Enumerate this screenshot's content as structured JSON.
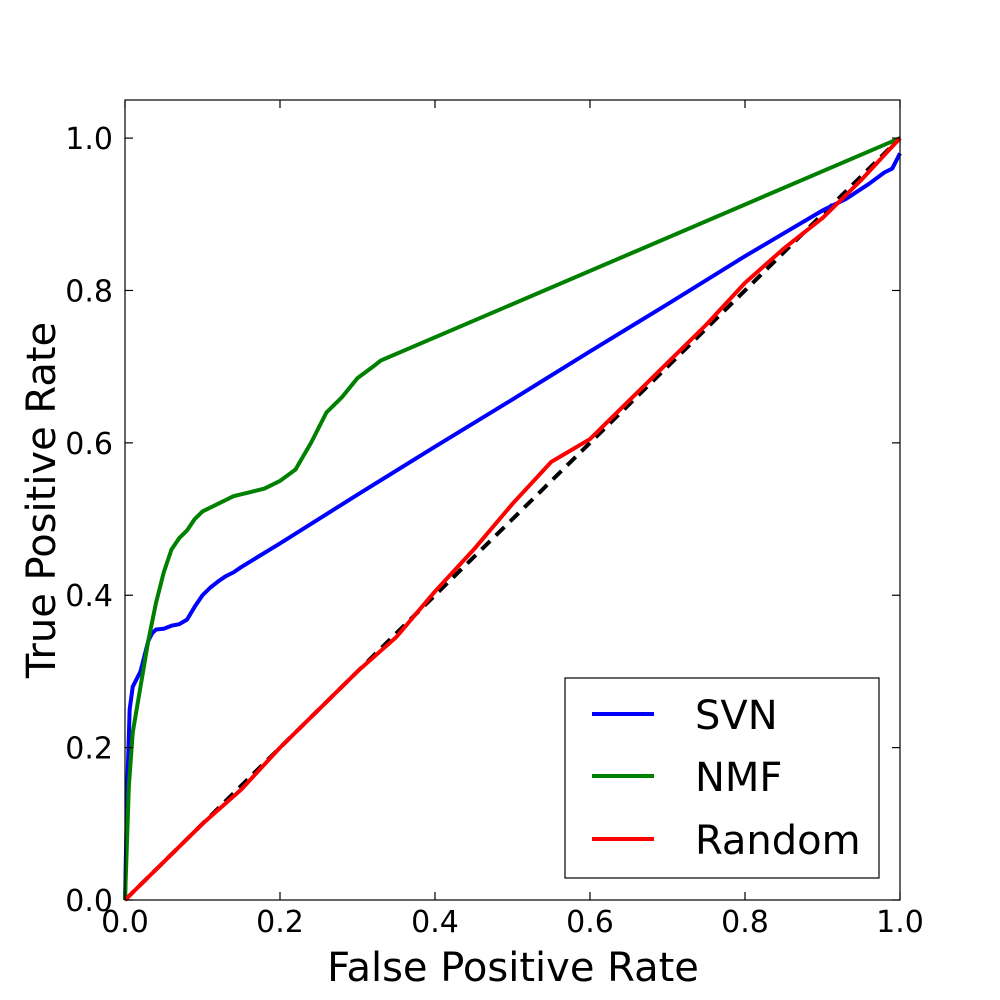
{
  "chart_data": {
    "type": "line",
    "title": "",
    "xlabel": "False Positive Rate",
    "ylabel": "True Positive Rate",
    "xlim": [
      0.0,
      1.0
    ],
    "ylim": [
      0.0,
      1.05
    ],
    "xticks": [
      "0.0",
      "0.2",
      "0.4",
      "0.6",
      "0.8",
      "1.0"
    ],
    "yticks": [
      "0.0",
      "0.2",
      "0.4",
      "0.6",
      "0.8",
      "1.0"
    ],
    "grid": false,
    "legend": {
      "position": "bottom-right"
    },
    "series": [
      {
        "name": "SVN",
        "color": "#0000ff",
        "x": [
          0.0,
          0.003,
          0.006,
          0.01,
          0.015,
          0.02,
          0.025,
          0.03,
          0.035,
          0.04,
          0.05,
          0.06,
          0.07,
          0.08,
          0.09,
          0.1,
          0.11,
          0.12,
          0.13,
          0.14,
          0.15,
          0.2,
          0.3,
          0.4,
          0.5,
          0.6,
          0.7,
          0.8,
          0.85,
          0.9,
          0.93,
          0.96,
          0.98,
          0.99,
          1.0
        ],
        "y": [
          0.0,
          0.15,
          0.25,
          0.28,
          0.29,
          0.3,
          0.32,
          0.34,
          0.35,
          0.355,
          0.356,
          0.36,
          0.362,
          0.368,
          0.385,
          0.4,
          0.41,
          0.418,
          0.425,
          0.43,
          0.437,
          0.468,
          0.532,
          0.595,
          0.657,
          0.72,
          0.782,
          0.845,
          0.875,
          0.905,
          0.92,
          0.94,
          0.955,
          0.96,
          0.98
        ]
      },
      {
        "name": "NMF",
        "color": "#008000",
        "x": [
          0.0,
          0.005,
          0.01,
          0.02,
          0.03,
          0.04,
          0.05,
          0.06,
          0.07,
          0.08,
          0.09,
          0.1,
          0.12,
          0.14,
          0.16,
          0.18,
          0.2,
          0.22,
          0.24,
          0.26,
          0.28,
          0.3,
          0.32,
          0.33,
          1.0
        ],
        "y": [
          0.0,
          0.15,
          0.22,
          0.28,
          0.34,
          0.39,
          0.43,
          0.46,
          0.475,
          0.485,
          0.5,
          0.51,
          0.52,
          0.53,
          0.535,
          0.54,
          0.55,
          0.565,
          0.6,
          0.64,
          0.66,
          0.685,
          0.7,
          0.708,
          1.0
        ]
      },
      {
        "name": "Random",
        "color": "#ff0000",
        "x": [
          0.0,
          0.05,
          0.1,
          0.15,
          0.2,
          0.25,
          0.3,
          0.35,
          0.4,
          0.45,
          0.5,
          0.55,
          0.6,
          0.65,
          0.7,
          0.75,
          0.8,
          0.85,
          0.9,
          0.95,
          1.0
        ],
        "y": [
          0.0,
          0.05,
          0.1,
          0.145,
          0.2,
          0.25,
          0.3,
          0.345,
          0.405,
          0.46,
          0.52,
          0.575,
          0.605,
          0.655,
          0.705,
          0.755,
          0.81,
          0.855,
          0.895,
          0.945,
          1.0
        ]
      },
      {
        "color": "#000000",
        "dashed": true,
        "x": [
          0.0,
          1.0
        ],
        "y": [
          0.0,
          1.0
        ]
      }
    ]
  }
}
